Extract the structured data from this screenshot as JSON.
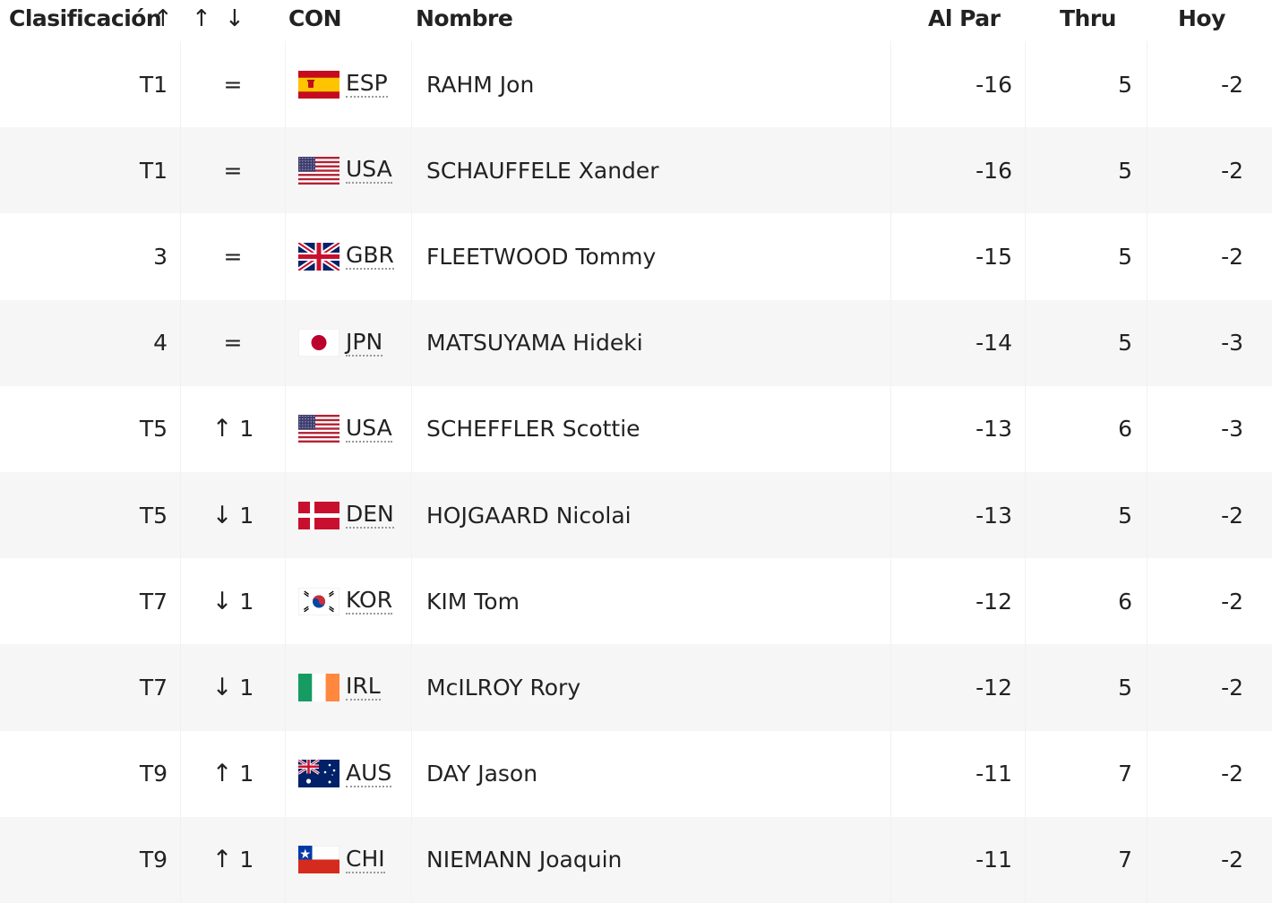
{
  "header": {
    "rank": "Clasificación",
    "sort_up": "↑",
    "sort_up2": "↑",
    "sort_down": "↓",
    "con": "CON",
    "name": "Nombre",
    "to_par": "Al Par",
    "thru": "Thru",
    "today": "Hoy"
  },
  "rows": [
    {
      "rank": "T1",
      "move_arrow": "",
      "move_text": "=",
      "flag": "esp-flag-icon",
      "con": "ESP",
      "name": "RAHM Jon",
      "to_par": "-16",
      "thru": "5",
      "today": "-2"
    },
    {
      "rank": "T1",
      "move_arrow": "",
      "move_text": "=",
      "flag": "usa-flag-icon",
      "con": "USA",
      "name": "SCHAUFFELE Xander",
      "to_par": "-16",
      "thru": "5",
      "today": "-2"
    },
    {
      "rank": "3",
      "move_arrow": "",
      "move_text": "=",
      "flag": "gbr-flag-icon",
      "con": "GBR",
      "name": "FLEETWOOD Tommy",
      "to_par": "-15",
      "thru": "5",
      "today": "-2"
    },
    {
      "rank": "4",
      "move_arrow": "",
      "move_text": "=",
      "flag": "jpn-flag-icon",
      "con": "JPN",
      "name": "MATSUYAMA Hideki",
      "to_par": "-14",
      "thru": "5",
      "today": "-3"
    },
    {
      "rank": "T5",
      "move_arrow": "↑",
      "move_text": "1",
      "flag": "usa-flag-icon",
      "con": "USA",
      "name": "SCHEFFLER Scottie",
      "to_par": "-13",
      "thru": "6",
      "today": "-3"
    },
    {
      "rank": "T5",
      "move_arrow": "↓",
      "move_text": "1",
      "flag": "den-flag-icon",
      "con": "DEN",
      "name": "HOJGAARD Nicolai",
      "to_par": "-13",
      "thru": "5",
      "today": "-2"
    },
    {
      "rank": "T7",
      "move_arrow": "↓",
      "move_text": "1",
      "flag": "kor-flag-icon",
      "con": "KOR",
      "name": "KIM Tom",
      "to_par": "-12",
      "thru": "6",
      "today": "-2"
    },
    {
      "rank": "T7",
      "move_arrow": "↓",
      "move_text": "1",
      "flag": "irl-flag-icon",
      "con": "IRL",
      "name": "McILROY Rory",
      "to_par": "-12",
      "thru": "5",
      "today": "-2"
    },
    {
      "rank": "T9",
      "move_arrow": "↑",
      "move_text": "1",
      "flag": "aus-flag-icon",
      "con": "AUS",
      "name": "DAY Jason",
      "to_par": "-11",
      "thru": "7",
      "today": "-2"
    },
    {
      "rank": "T9",
      "move_arrow": "↑",
      "move_text": "1",
      "flag": "chi-flag-icon",
      "con": "CHI",
      "name": "NIEMANN Joaquin",
      "to_par": "-11",
      "thru": "7",
      "today": "-2"
    }
  ]
}
